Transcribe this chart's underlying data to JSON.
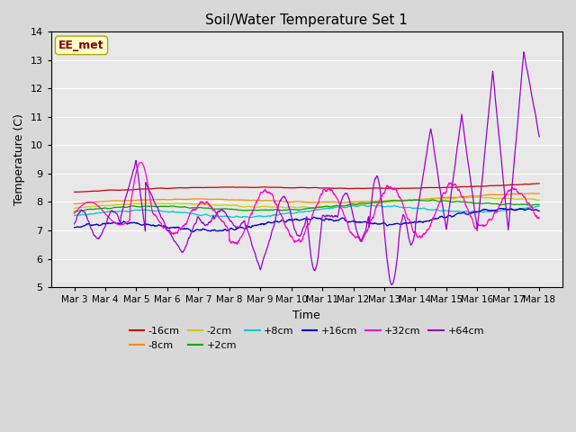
{
  "title": "Soil/Water Temperature Set 1",
  "xlabel": "Time",
  "ylabel": "Temperature (C)",
  "ylim": [
    5.0,
    14.0
  ],
  "yticks": [
    5.0,
    6.0,
    7.0,
    8.0,
    9.0,
    10.0,
    11.0,
    12.0,
    13.0,
    14.0
  ],
  "n_points": 1500,
  "days": 15,
  "xtick_labels": [
    "Mar 3",
    "Mar 4",
    "Mar 5",
    "Mar 6",
    "Mar 7",
    "Mar 8",
    "Mar 9",
    "Mar 10",
    "Mar 11",
    "Mar 12",
    "Mar 13",
    "Mar 14",
    "Mar 15",
    "Mar 16",
    "Mar 17",
    "Mar 18"
  ],
  "series_colors": {
    "-16cm": "#cc0000",
    "-8cm": "#ff8800",
    "-2cm": "#cccc00",
    "+2cm": "#00aa00",
    "+8cm": "#00cccc",
    "+16cm": "#0000cc",
    "+32cm": "#ff00cc",
    "+64cm": "#9900cc"
  },
  "watermark": "EE_met",
  "watermark_color": "#880000",
  "watermark_bg": "#ffffcc",
  "plot_bg_color": "#e8e8e8",
  "grid_color": "#ffffff"
}
